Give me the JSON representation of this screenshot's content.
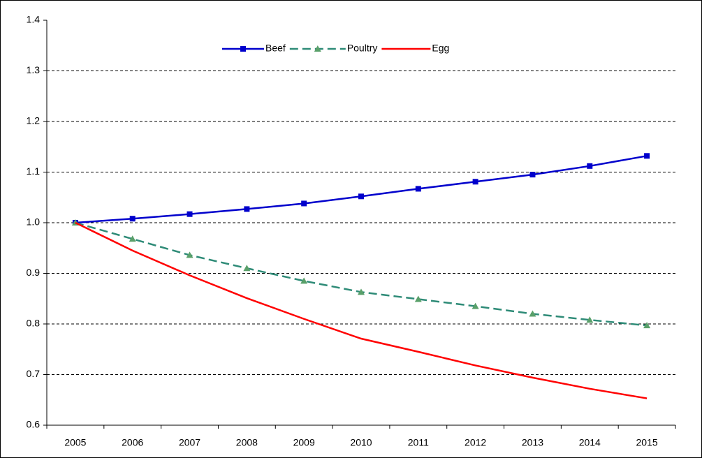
{
  "chart_data": {
    "type": "line",
    "categories": [
      "2005",
      "2006",
      "2007",
      "2008",
      "2009",
      "2010",
      "2011",
      "2012",
      "2013",
      "2014",
      "2015"
    ],
    "series": [
      {
        "name": "Beef",
        "color": "#0000cc",
        "line_style": "solid",
        "marker": "square",
        "values": [
          1.0,
          1.008,
          1.017,
          1.027,
          1.038,
          1.052,
          1.067,
          1.081,
          1.095,
          1.112,
          1.132
        ]
      },
      {
        "name": "Poultry",
        "color": "#2e8b77",
        "marker_color": "#5aa06a",
        "line_style": "dashed",
        "marker": "triangle",
        "values": [
          1.0,
          0.968,
          0.936,
          0.91,
          0.885,
          0.863,
          0.849,
          0.835,
          0.82,
          0.808,
          0.797
        ]
      },
      {
        "name": "Egg",
        "color": "#ff0000",
        "line_style": "solid",
        "marker": "none",
        "values": [
          1.0,
          0.945,
          0.896,
          0.851,
          0.81,
          0.771,
          0.745,
          0.718,
          0.694,
          0.672,
          0.653
        ]
      }
    ],
    "ylim": [
      0.6,
      1.4
    ],
    "yticks": [
      0.6,
      0.7,
      0.8,
      0.9,
      {
        "value": 1.0,
        "label": "1.0"
      },
      1.1,
      1.2,
      1.3,
      1.4
    ],
    "grid": true,
    "legend": "top"
  }
}
